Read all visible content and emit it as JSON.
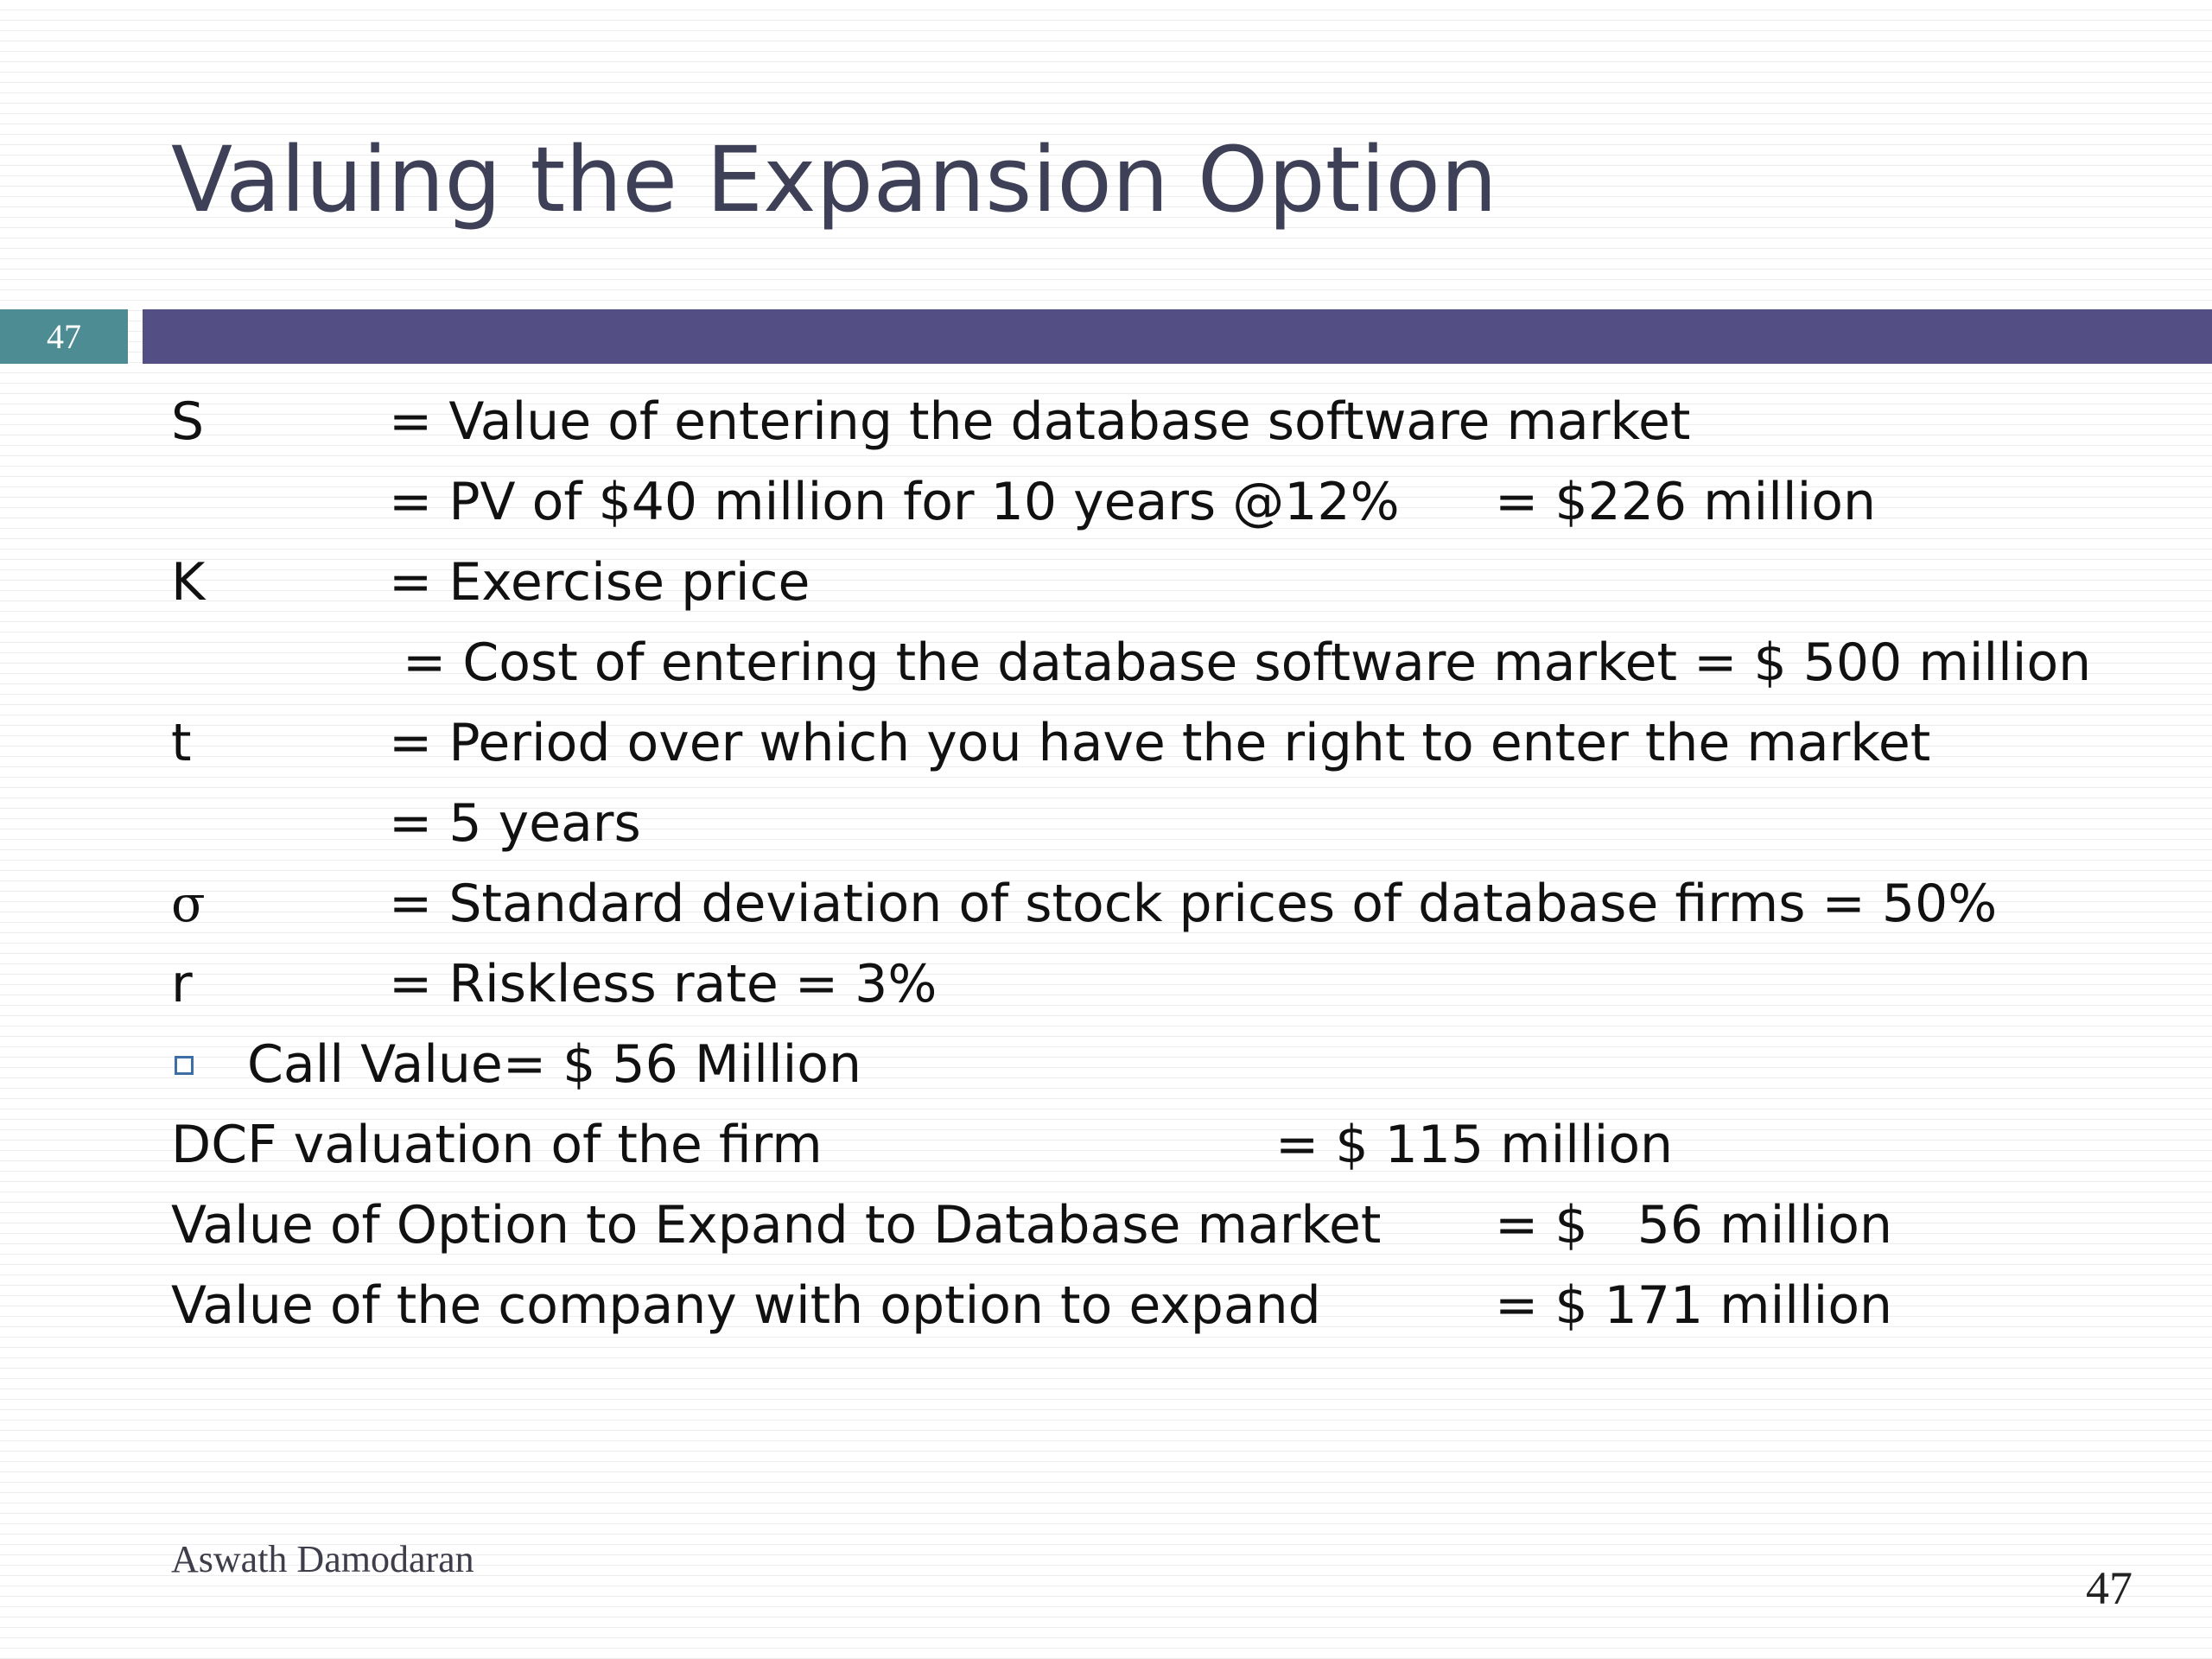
{
  "slide": {
    "title": "Valuing the Expansion Option",
    "number_badge": "47",
    "page_number": "47",
    "author": "Aswath Damodaran"
  },
  "rows": [
    {
      "symbol": "S",
      "definition": "= Value of entering the database software market",
      "value": ""
    },
    {
      "symbol": "",
      "definition": "= PV of $40 million for 10 years @12%",
      "value": "= $226 million"
    },
    {
      "symbol": "K",
      "definition": "= Exercise price",
      "value": ""
    },
    {
      "symbol": "",
      "definition": "= Cost of entering the database software market = $ 500 million",
      "value": ""
    },
    {
      "symbol": "t",
      "definition": "= Period over which you have the right to enter the market",
      "value": ""
    },
    {
      "symbol": "",
      "definition": "= 5 years",
      "value": ""
    },
    {
      "symbol": "σ",
      "definition": "= Standard deviation of stock prices of database firms = 50%",
      "value": ""
    },
    {
      "symbol": "r",
      "definition": "= Riskless rate = 3%",
      "value": ""
    }
  ],
  "bullet": "Call Value= $ 56 Million",
  "summary": [
    {
      "label": "DCF valuation of the firm",
      "value": "= $ 115 million"
    },
    {
      "label": "Value of Option to Expand to Database market",
      "value": "= $   56 million"
    },
    {
      "label": "Value of the company with option to expand",
      "value": "= $ 171 million"
    }
  ]
}
